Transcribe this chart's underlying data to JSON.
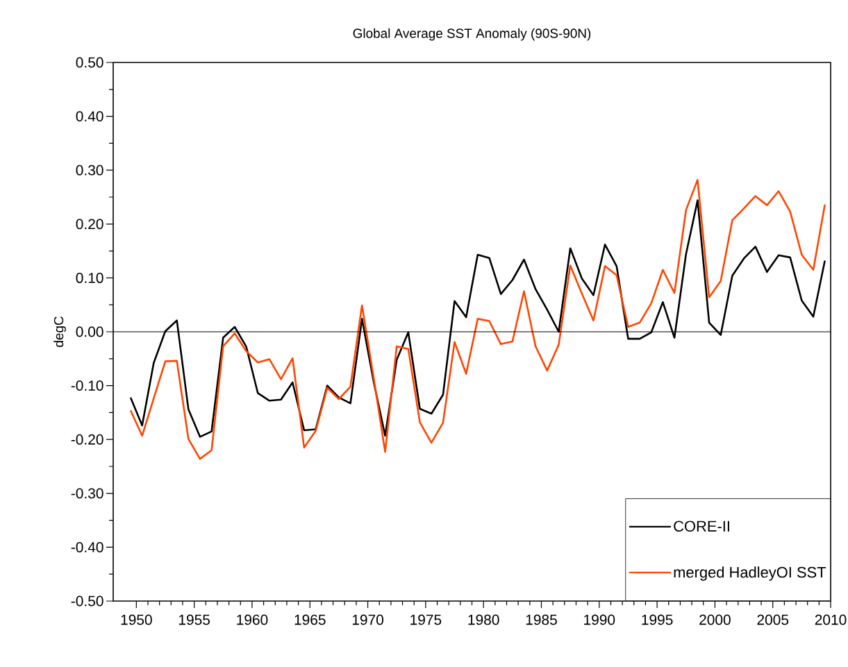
{
  "chart_data": {
    "type": "line",
    "title": "Global Average SST Anomaly (90S-90N)",
    "ylabel": "degC",
    "x": [
      1949.5,
      1950.5,
      1951.5,
      1952.5,
      1953.5,
      1954.5,
      1955.5,
      1956.5,
      1957.5,
      1958.5,
      1959.5,
      1960.5,
      1961.5,
      1962.5,
      1963.5,
      1964.5,
      1965.5,
      1966.5,
      1967.5,
      1968.5,
      1969.5,
      1970.5,
      1971.5,
      1972.5,
      1973.5,
      1974.5,
      1975.5,
      1976.5,
      1977.5,
      1978.5,
      1979.5,
      1980.5,
      1981.5,
      1982.5,
      1983.5,
      1984.5,
      1985.5,
      1986.5,
      1987.5,
      1988.5,
      1989.5,
      1990.5,
      1991.5,
      1992.5,
      1993.5,
      1994.5,
      1995.5,
      1996.5,
      1997.5,
      1998.5,
      1999.5,
      2000.5,
      2001.5,
      2002.5,
      2003.5,
      2004.5,
      2005.5,
      2006.5,
      2007.5,
      2008.5,
      2009.5
    ],
    "series": [
      {
        "name": "CORE-II",
        "color": "#000000",
        "values": [
          -0.122,
          -0.174,
          -0.058,
          0.001,
          0.021,
          -0.144,
          -0.195,
          -0.185,
          -0.011,
          0.009,
          -0.028,
          -0.114,
          -0.128,
          -0.126,
          -0.094,
          -0.183,
          -0.181,
          -0.1,
          -0.122,
          -0.133,
          0.024,
          -0.092,
          -0.193,
          -0.052,
          -0.001,
          -0.143,
          -0.152,
          -0.117,
          0.057,
          0.027,
          0.143,
          0.137,
          0.07,
          0.096,
          0.134,
          0.079,
          0.041,
          0.0,
          0.155,
          0.099,
          0.068,
          0.162,
          0.122,
          -0.013,
          -0.013,
          -0.001,
          0.055,
          -0.011,
          0.144,
          0.244,
          0.017,
          -0.006,
          0.104,
          0.136,
          0.158,
          0.111,
          0.142,
          0.138,
          0.058,
          0.028,
          0.132
        ]
      },
      {
        "name": "merged HadleyOI SST",
        "color": "#ff4500",
        "values": [
          -0.146,
          -0.193,
          -0.124,
          -0.055,
          -0.054,
          -0.199,
          -0.236,
          -0.22,
          -0.027,
          -0.003,
          -0.036,
          -0.057,
          -0.051,
          -0.088,
          -0.049,
          -0.215,
          -0.184,
          -0.104,
          -0.125,
          -0.102,
          0.049,
          -0.084,
          -0.223,
          -0.027,
          -0.032,
          -0.168,
          -0.206,
          -0.169,
          -0.019,
          -0.078,
          0.024,
          0.02,
          -0.023,
          -0.018,
          0.075,
          -0.027,
          -0.072,
          -0.024,
          0.123,
          0.071,
          0.021,
          0.122,
          0.105,
          0.009,
          0.017,
          0.053,
          0.115,
          0.072,
          0.226,
          0.282,
          0.064,
          0.094,
          0.207,
          0.229,
          0.252,
          0.235,
          0.261,
          0.223,
          0.143,
          0.115,
          0.236
        ]
      }
    ],
    "xlim": [
      1948,
      2010
    ],
    "xticks": [
      1950,
      1955,
      1960,
      1965,
      1970,
      1975,
      1980,
      1985,
      1990,
      1995,
      2000,
      2005,
      2010
    ],
    "ylim": [
      -0.5,
      0.5
    ],
    "yticks": [
      {
        "value": -0.5,
        "label": "-0.50"
      },
      {
        "value": -0.4,
        "label": "-0.40"
      },
      {
        "value": -0.3,
        "label": "-0.30"
      },
      {
        "value": -0.2,
        "label": "-0.20"
      },
      {
        "value": -0.1,
        "label": "-0.10"
      },
      {
        "value": 0,
        "label": "0.00"
      },
      {
        "value": 0.1,
        "label": "0.10"
      },
      {
        "value": 0.2,
        "label": "0.20"
      },
      {
        "value": 0.3,
        "label": "0.30"
      },
      {
        "value": 0.4,
        "label": "0.40"
      },
      {
        "value": 0.5,
        "label": "0.50"
      }
    ],
    "ref_lines": [
      {
        "axis": "y",
        "value": 0,
        "color": "#000000"
      }
    ],
    "legend": "bottom right"
  }
}
